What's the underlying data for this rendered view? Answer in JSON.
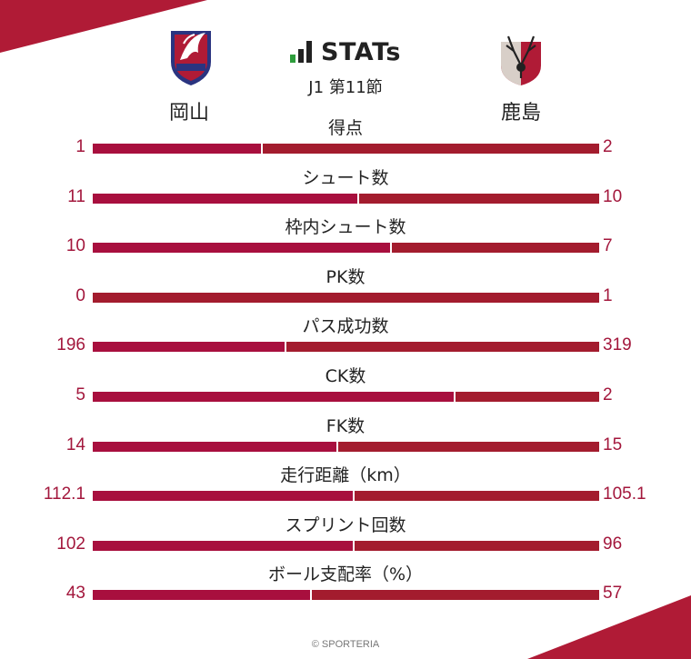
{
  "header": {
    "brand": "STATs",
    "subtitle": "J1 第11節",
    "credit": "© SPORTERIA"
  },
  "teams": {
    "home": {
      "name": "岡山",
      "logo": "fagiano-okayama-crest"
    },
    "away": {
      "name": "鹿島",
      "logo": "kashima-antlers-crest"
    }
  },
  "colors": {
    "home_bar": "#a80f3e",
    "away_bar": "#a31c2e",
    "value_text": "#a3173c",
    "corner_accent": "#b01b36"
  },
  "chart_data": {
    "type": "bar",
    "orientation": "horizontal-diverging",
    "title": "",
    "series": [
      {
        "name": "岡山"
      },
      {
        "name": "鹿島"
      }
    ],
    "categories": [
      "得点",
      "シュート数",
      "枠内シュート数",
      "PK数",
      "パス成功数",
      "CK数",
      "FK数",
      "走行距離（km）",
      "スプリント回数",
      "ボール支配率（%）"
    ],
    "stats": [
      {
        "label": "得点",
        "home": 1,
        "away": 2,
        "home_text": "1",
        "away_text": "2"
      },
      {
        "label": "シュート数",
        "home": 11,
        "away": 10,
        "home_text": "11",
        "away_text": "10"
      },
      {
        "label": "枠内シュート数",
        "home": 10,
        "away": 7,
        "home_text": "10",
        "away_text": "7"
      },
      {
        "label": "PK数",
        "home": 0,
        "away": 1,
        "home_text": "0",
        "away_text": "1"
      },
      {
        "label": "パス成功数",
        "home": 196,
        "away": 319,
        "home_text": "196",
        "away_text": "319"
      },
      {
        "label": "CK数",
        "home": 5,
        "away": 2,
        "home_text": "5",
        "away_text": "2"
      },
      {
        "label": "FK数",
        "home": 14,
        "away": 15,
        "home_text": "14",
        "away_text": "15"
      },
      {
        "label": "走行距離（km）",
        "home": 112.1,
        "away": 105.1,
        "home_text": "112.1",
        "away_text": "105.1"
      },
      {
        "label": "スプリント回数",
        "home": 102,
        "away": 96,
        "home_text": "102",
        "away_text": "96"
      },
      {
        "label": "ボール支配率（%）",
        "home": 43,
        "away": 57,
        "home_text": "43",
        "away_text": "57"
      }
    ]
  }
}
